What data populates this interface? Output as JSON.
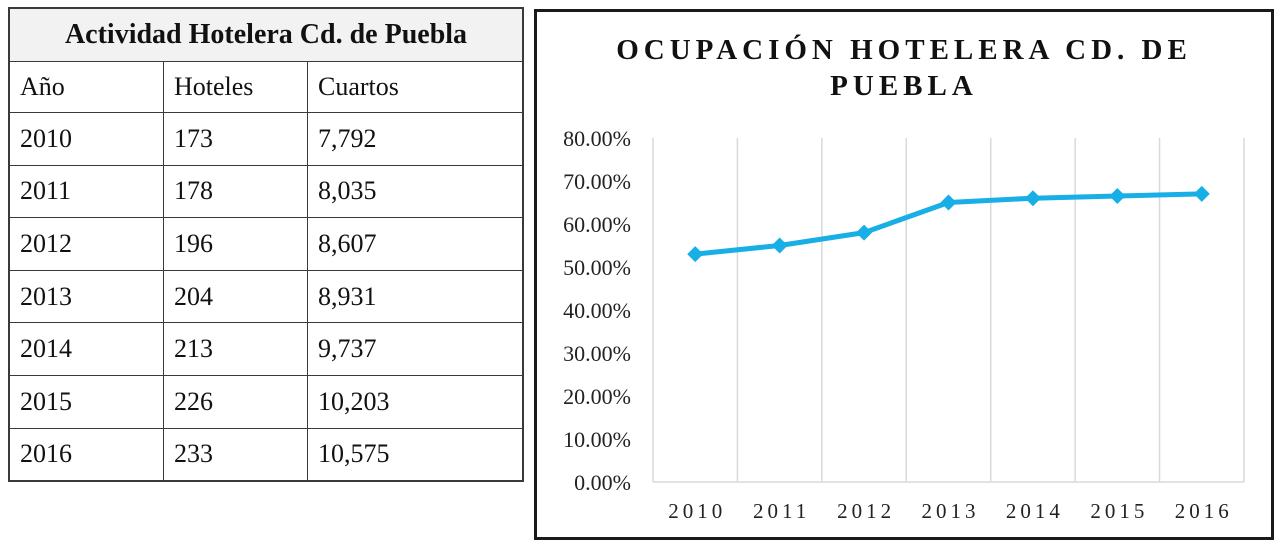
{
  "table": {
    "title": "Actividad Hotelera Cd. de Puebla",
    "headers": [
      "Año",
      "Hoteles",
      "Cuartos"
    ],
    "rows": [
      [
        "2010",
        "173",
        "7,792"
      ],
      [
        "2011",
        "178",
        "8,035"
      ],
      [
        "2012",
        "196",
        "8,607"
      ],
      [
        "2013",
        "204",
        "8,931"
      ],
      [
        "2014",
        "213",
        "9,737"
      ],
      [
        "2015",
        "226",
        "10,203"
      ],
      [
        "2016",
        "233",
        "10,575"
      ]
    ]
  },
  "chart_data": {
    "type": "line",
    "title": "OCUPACIÓN HOTELERA CD. DE PUEBLA",
    "title_lines": [
      "OCUPACIÓN HOTELERA CD. DE",
      "PUEBLA"
    ],
    "categories": [
      "2010",
      "2011",
      "2012",
      "2013",
      "2014",
      "2015",
      "2016"
    ],
    "series": [
      {
        "values": [
          0.53,
          0.55,
          0.58,
          0.65,
          0.66,
          0.665,
          0.67
        ]
      }
    ],
    "ylim": [
      0,
      0.8
    ],
    "yticks": [
      "0.00%",
      "10.00%",
      "20.00%",
      "30.00%",
      "40.00%",
      "50.00%",
      "60.00%",
      "70.00%",
      "80.00%"
    ],
    "grid": "vertical",
    "line_color": "#18aee6",
    "grid_color": "#d9d9d9"
  }
}
